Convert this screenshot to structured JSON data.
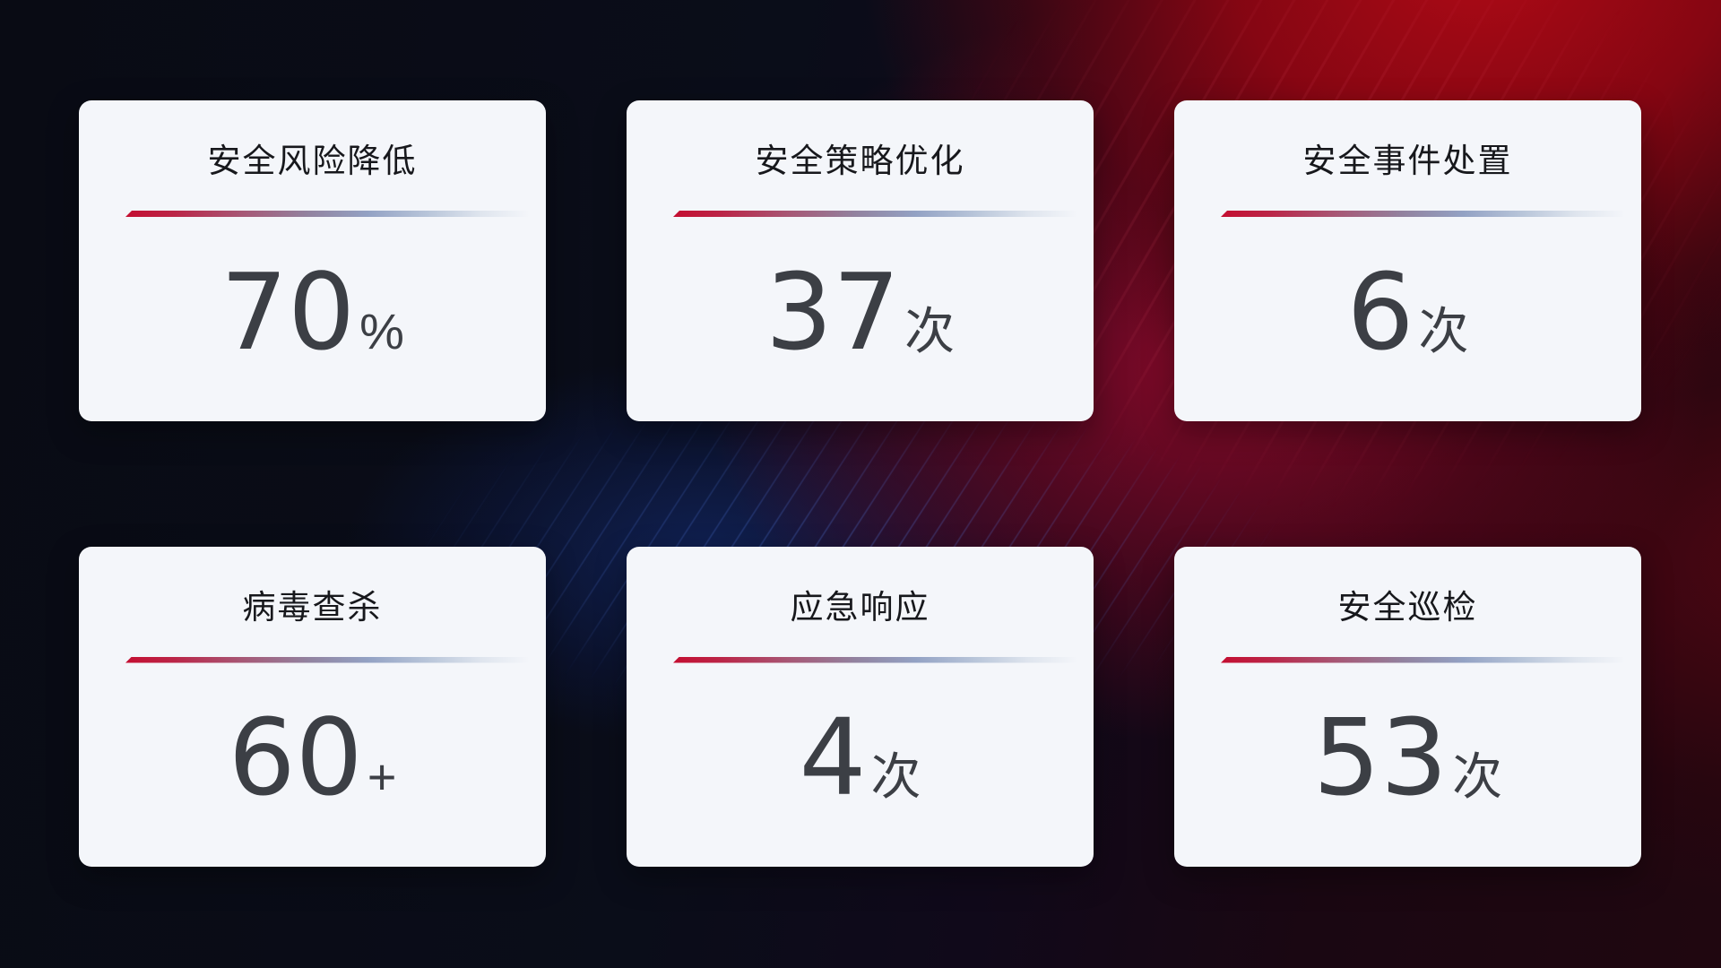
{
  "theme": {
    "background_dark": "#090b14",
    "background_red": "#960612",
    "background_crimson_band": "#ac0a2e",
    "background_blue_streaks": "#2d5ae0",
    "card_background": "#f4f6fa",
    "title_color": "#17181c",
    "value_color": "#3c3f45",
    "divider_gradient_left": "#c40e31",
    "divider_gradient_mid": "#93a2c4",
    "divider_gradient_right": "rgba(244,246,250,0)"
  },
  "cards": [
    {
      "title": "安全风险降低",
      "value": "70",
      "unit": "%"
    },
    {
      "title": "安全策略优化",
      "value": "37",
      "unit": "次"
    },
    {
      "title": "安全事件处置",
      "value": "6",
      "unit": "次"
    },
    {
      "title": "病毒查杀",
      "value": "60",
      "unit": "+"
    },
    {
      "title": "应急响应",
      "value": "4",
      "unit": "次"
    },
    {
      "title": "安全巡检",
      "value": "53",
      "unit": "次"
    }
  ]
}
